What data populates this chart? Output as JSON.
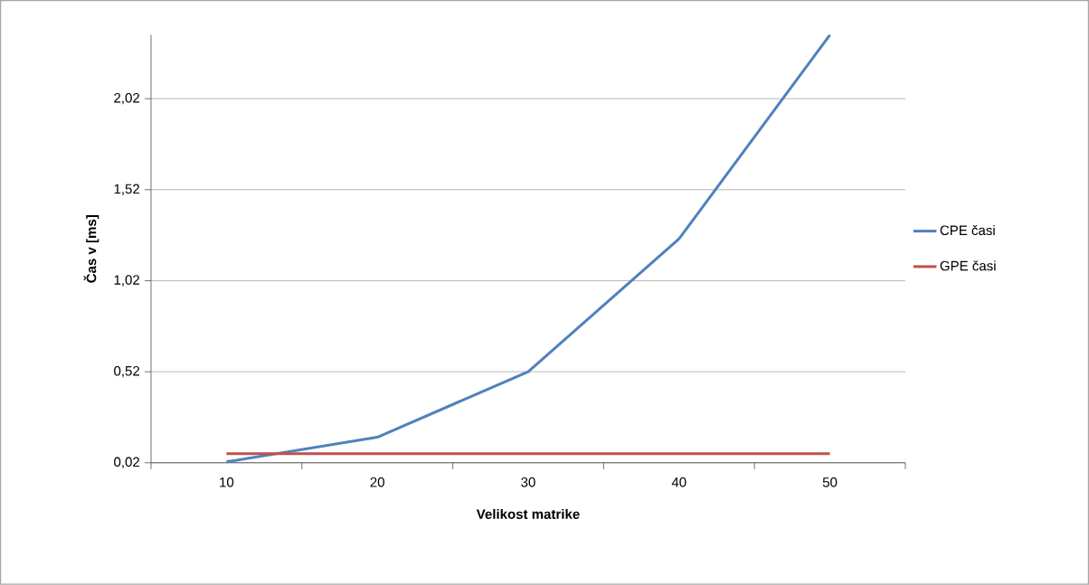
{
  "chart_data": {
    "type": "line",
    "xlabel": "Velikost matrike",
    "ylabel": "Čas v [ms]",
    "categories": [
      "10",
      "20",
      "30",
      "40",
      "50"
    ],
    "series": [
      {
        "name": "CPE časi",
        "color": "#4f81bd",
        "values": [
          0.025,
          0.16,
          0.52,
          1.25,
          2.37
        ]
      },
      {
        "name": "GPE časi",
        "color": "#c0504d",
        "values": [
          0.07,
          0.07,
          0.07,
          0.07,
          0.07
        ]
      }
    ],
    "ylim": [
      0.02,
      2.37
    ],
    "yticks": [
      {
        "value": 0.02,
        "label": "0,02"
      },
      {
        "value": 0.52,
        "label": "0,52"
      },
      {
        "value": 1.02,
        "label": "1,02"
      },
      {
        "value": 1.52,
        "label": "1,52"
      },
      {
        "value": 2.02,
        "label": "2,02"
      }
    ],
    "grid": "y",
    "legend": "right",
    "marker": "none",
    "line_style": "solid"
  }
}
